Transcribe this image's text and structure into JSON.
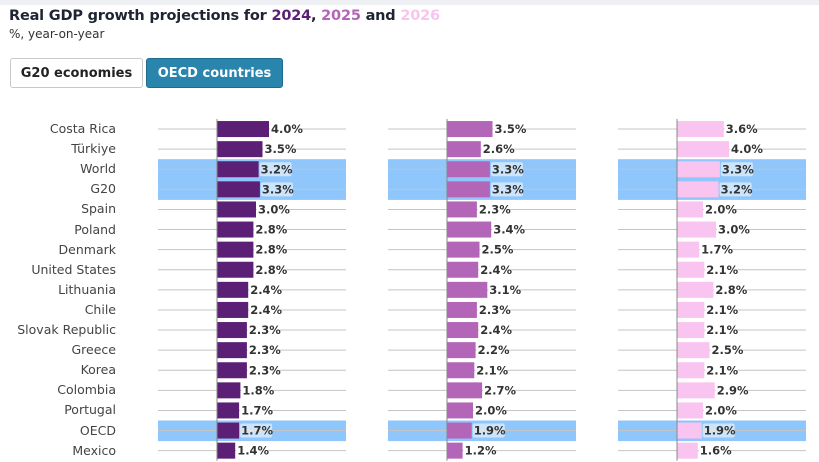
{
  "title": {
    "prefix": "Real GDP growth projections for ",
    "year1": "2024",
    "sep1": ", ",
    "year2": "2025",
    "sep2": " and ",
    "year3": "2026"
  },
  "subtitle": "%, year-on-year",
  "buttons": {
    "g20": "G20 economies",
    "oecd": "OECD countries",
    "active": "oecd"
  },
  "colors": {
    "series_2024": "#5b1f75",
    "series_2025": "#b366b8",
    "series_2026": "#f9c4ef",
    "highlight": "#8fc6fb",
    "button_active": "#2a85ad"
  },
  "chart_data": {
    "type": "bar",
    "orientation": "horizontal",
    "title": "Real GDP growth projections for 2024, 2025 and 2026",
    "subtitle": "%, year-on-year",
    "categories": [
      "Costa Rica",
      "Türkiye",
      "World",
      "G20",
      "Spain",
      "Poland",
      "Denmark",
      "United States",
      "Lithuania",
      "Chile",
      "Slovak Republic",
      "Greece",
      "Korea",
      "Colombia",
      "Portugal",
      "OECD",
      "Mexico"
    ],
    "highlighted": [
      "World",
      "G20",
      "OECD"
    ],
    "series": [
      {
        "name": "2024",
        "values": [
          4.0,
          3.5,
          3.2,
          3.3,
          3.0,
          2.8,
          2.8,
          2.8,
          2.4,
          2.4,
          2.3,
          2.3,
          2.3,
          1.8,
          1.7,
          1.7,
          1.4
        ]
      },
      {
        "name": "2025",
        "values": [
          3.5,
          2.6,
          3.3,
          3.3,
          2.3,
          3.4,
          2.5,
          2.4,
          3.1,
          2.3,
          2.4,
          2.2,
          2.1,
          2.7,
          2.0,
          1.9,
          1.2
        ]
      },
      {
        "name": "2026",
        "values": [
          3.6,
          4.0,
          3.3,
          3.2,
          2.0,
          3.0,
          1.7,
          2.1,
          2.8,
          2.1,
          2.1,
          2.5,
          2.1,
          2.9,
          2.0,
          1.9,
          1.6
        ]
      }
    ],
    "value_suffix": "%",
    "xlabel": "",
    "ylabel": "",
    "grid": true
  }
}
